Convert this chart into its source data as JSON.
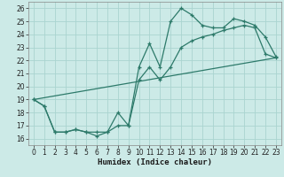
{
  "xlabel": "Humidex (Indice chaleur)",
  "background_color": "#cceae7",
  "grid_color": "#aad4d0",
  "line_color": "#2d7a6a",
  "xlim": [
    -0.5,
    23.5
  ],
  "ylim": [
    15.5,
    26.5
  ],
  "xticks": [
    0,
    1,
    2,
    3,
    4,
    5,
    6,
    7,
    8,
    9,
    10,
    11,
    12,
    13,
    14,
    15,
    16,
    17,
    18,
    19,
    20,
    21,
    22,
    23
  ],
  "yticks": [
    16,
    17,
    18,
    19,
    20,
    21,
    22,
    23,
    24,
    25,
    26
  ],
  "line1_x": [
    0,
    1,
    2,
    3,
    4,
    5,
    6,
    7,
    8,
    9,
    10,
    11,
    12,
    13,
    14,
    15,
    16,
    17,
    18,
    19,
    20,
    21,
    22,
    23
  ],
  "line1_y": [
    19.0,
    18.5,
    16.5,
    16.5,
    16.7,
    16.5,
    16.5,
    16.5,
    18.0,
    17.0,
    21.5,
    23.3,
    21.5,
    25.0,
    26.0,
    25.5,
    24.7,
    24.5,
    24.5,
    25.2,
    25.0,
    24.7,
    23.8,
    22.3
  ],
  "line2_x": [
    0,
    1,
    2,
    3,
    4,
    5,
    6,
    7,
    8,
    9,
    10,
    11,
    12,
    13,
    14,
    15,
    16,
    17,
    18,
    19,
    20,
    21,
    22,
    23
  ],
  "line2_y": [
    19.0,
    18.5,
    16.5,
    16.5,
    16.7,
    16.5,
    16.2,
    16.5,
    17.0,
    17.0,
    20.5,
    21.5,
    20.5,
    21.5,
    23.0,
    23.5,
    23.8,
    24.0,
    24.3,
    24.5,
    24.7,
    24.5,
    22.5,
    22.2
  ],
  "line3_x": [
    0,
    23
  ],
  "line3_y": [
    19.0,
    22.2
  ],
  "markersize": 3,
  "linewidth": 0.9,
  "tick_fontsize": 5.5,
  "xlabel_fontsize": 6.5
}
